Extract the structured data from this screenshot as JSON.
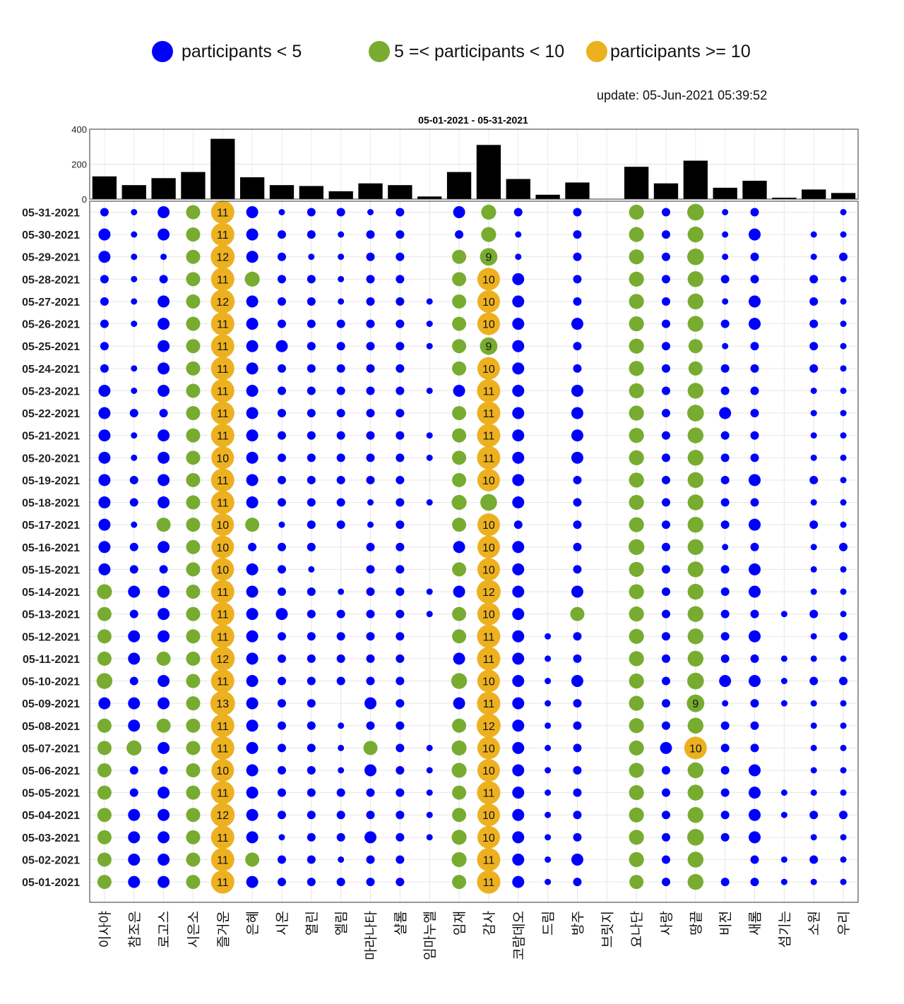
{
  "legend": [
    {
      "label": "participants < 5",
      "color": "#0000ff"
    },
    {
      "label": "5 =< participants < 10",
      "color": "#77ac30"
    },
    {
      "label": "participants >= 10",
      "color": "#edb120"
    }
  ],
  "update_text": "update: 05-Jun-2021 05:39:52",
  "chart_data": {
    "type": "scatter",
    "title": "05-01-2021   - 05-31-2021",
    "categories": [
      "이사야",
      "참조은",
      "로고스",
      "시은소",
      "즐거운",
      "은혜",
      "시온",
      "열린",
      "엘림",
      "마라나타",
      "샬롬",
      "임마누엘",
      "임재",
      "감사",
      "코람데오",
      "드림",
      "방주",
      "브릿지",
      "요나단",
      "사랑",
      "땅끝",
      "비전",
      "새롬",
      "섬기는",
      "소원",
      "우리"
    ],
    "dates": [
      "05-31-2021",
      "05-30-2021",
      "05-29-2021",
      "05-28-2021",
      "05-27-2021",
      "05-26-2021",
      "05-25-2021",
      "05-24-2021",
      "05-23-2021",
      "05-22-2021",
      "05-21-2021",
      "05-20-2021",
      "05-19-2021",
      "05-18-2021",
      "05-17-2021",
      "05-16-2021",
      "05-15-2021",
      "05-14-2021",
      "05-13-2021",
      "05-12-2021",
      "05-11-2021",
      "05-10-2021",
      "05-09-2021",
      "05-08-2021",
      "05-07-2021",
      "05-06-2021",
      "05-05-2021",
      "05-04-2021",
      "05-03-2021",
      "05-02-2021",
      "05-01-2021"
    ],
    "totals": {
      "values": [
        130,
        80,
        120,
        155,
        345,
        125,
        80,
        75,
        45,
        90,
        80,
        15,
        155,
        310,
        115,
        25,
        95,
        0,
        185,
        90,
        220,
        65,
        105,
        8,
        55,
        35
      ],
      "yticks": [
        0,
        200,
        400
      ],
      "ylim": [
        0,
        400
      ]
    },
    "participants": [
      [
        3,
        2,
        4,
        5,
        11,
        4,
        2,
        3,
        3,
        2,
        3,
        0,
        4,
        6,
        3,
        0,
        3,
        0,
        6,
        3,
        8,
        2,
        3,
        0,
        0,
        2
      ],
      [
        4,
        2,
        4,
        5,
        11,
        4,
        3,
        3,
        2,
        3,
        3,
        0,
        3,
        6,
        2,
        0,
        3,
        0,
        6,
        3,
        7,
        2,
        4,
        0,
        2,
        2
      ],
      [
        4,
        2,
        2,
        5,
        12,
        4,
        3,
        2,
        2,
        3,
        3,
        0,
        5,
        9,
        2,
        0,
        3,
        0,
        6,
        3,
        8,
        2,
        3,
        0,
        2,
        3
      ],
      [
        3,
        2,
        3,
        5,
        11,
        6,
        3,
        3,
        2,
        3,
        3,
        0,
        5,
        10,
        4,
        0,
        3,
        0,
        6,
        3,
        7,
        3,
        3,
        0,
        3,
        2
      ],
      [
        3,
        2,
        4,
        5,
        12,
        4,
        3,
        3,
        2,
        3,
        3,
        2,
        5,
        10,
        4,
        0,
        3,
        0,
        6,
        3,
        7,
        2,
        4,
        0,
        3,
        2
      ],
      [
        3,
        2,
        4,
        5,
        11,
        4,
        3,
        3,
        3,
        3,
        3,
        2,
        5,
        10,
        4,
        0,
        4,
        0,
        6,
        3,
        7,
        3,
        4,
        0,
        3,
        2
      ],
      [
        3,
        0,
        4,
        5,
        11,
        4,
        4,
        3,
        3,
        3,
        3,
        2,
        5,
        9,
        4,
        0,
        3,
        0,
        6,
        3,
        5,
        2,
        3,
        0,
        3,
        2
      ],
      [
        3,
        2,
        4,
        5,
        11,
        4,
        3,
        3,
        3,
        3,
        3,
        0,
        5,
        10,
        4,
        0,
        3,
        0,
        6,
        3,
        5,
        3,
        3,
        0,
        3,
        2
      ],
      [
        4,
        2,
        4,
        5,
        11,
        4,
        3,
        3,
        3,
        3,
        3,
        2,
        4,
        11,
        4,
        0,
        4,
        0,
        6,
        3,
        7,
        3,
        3,
        0,
        2,
        2
      ],
      [
        4,
        3,
        3,
        5,
        11,
        4,
        3,
        3,
        3,
        3,
        3,
        0,
        5,
        11,
        4,
        0,
        4,
        0,
        6,
        3,
        8,
        4,
        3,
        0,
        2,
        2
      ],
      [
        4,
        2,
        4,
        5,
        11,
        4,
        3,
        3,
        3,
        3,
        3,
        2,
        5,
        11,
        4,
        0,
        4,
        0,
        6,
        3,
        7,
        3,
        3,
        0,
        2,
        2
      ],
      [
        4,
        2,
        4,
        5,
        10,
        4,
        3,
        3,
        3,
        3,
        3,
        2,
        5,
        11,
        4,
        0,
        4,
        0,
        6,
        3,
        7,
        3,
        3,
        0,
        2,
        2
      ],
      [
        4,
        3,
        4,
        5,
        11,
        4,
        3,
        3,
        3,
        3,
        3,
        0,
        5,
        10,
        4,
        0,
        3,
        0,
        6,
        3,
        7,
        3,
        4,
        0,
        3,
        2
      ],
      [
        4,
        3,
        4,
        5,
        11,
        4,
        3,
        3,
        3,
        2,
        3,
        2,
        6,
        8,
        4,
        0,
        3,
        0,
        6,
        3,
        7,
        3,
        3,
        0,
        2,
        2
      ],
      [
        4,
        2,
        5,
        5,
        10,
        5,
        2,
        3,
        3,
        2,
        3,
        0,
        5,
        10,
        3,
        0,
        3,
        0,
        6,
        3,
        7,
        3,
        4,
        0,
        3,
        2
      ],
      [
        4,
        3,
        4,
        5,
        10,
        3,
        3,
        3,
        0,
        3,
        3,
        0,
        4,
        10,
        4,
        0,
        3,
        0,
        7,
        3,
        7,
        2,
        3,
        0,
        2,
        3
      ],
      [
        4,
        3,
        3,
        5,
        10,
        4,
        3,
        2,
        0,
        3,
        3,
        0,
        5,
        10,
        4,
        0,
        3,
        0,
        6,
        3,
        7,
        3,
        4,
        0,
        2,
        2
      ],
      [
        6,
        4,
        4,
        5,
        11,
        4,
        3,
        3,
        2,
        3,
        3,
        2,
        4,
        12,
        4,
        0,
        4,
        0,
        6,
        3,
        7,
        3,
        4,
        0,
        2,
        2
      ],
      [
        5,
        3,
        4,
        5,
        11,
        4,
        4,
        3,
        3,
        3,
        3,
        2,
        5,
        10,
        4,
        0,
        5,
        0,
        6,
        3,
        7,
        3,
        3,
        2,
        3,
        2
      ],
      [
        5,
        4,
        4,
        5,
        11,
        4,
        3,
        3,
        3,
        3,
        3,
        0,
        5,
        11,
        4,
        2,
        3,
        0,
        6,
        3,
        7,
        3,
        4,
        0,
        2,
        3
      ],
      [
        5,
        4,
        5,
        5,
        12,
        4,
        3,
        3,
        3,
        3,
        3,
        0,
        4,
        11,
        4,
        2,
        3,
        0,
        6,
        3,
        7,
        3,
        3,
        2,
        2,
        2
      ],
      [
        7,
        3,
        4,
        5,
        11,
        4,
        3,
        3,
        3,
        3,
        3,
        0,
        7,
        10,
        4,
        2,
        4,
        0,
        6,
        3,
        8,
        4,
        4,
        2,
        3,
        3
      ],
      [
        4,
        4,
        4,
        5,
        13,
        4,
        3,
        3,
        0,
        4,
        3,
        0,
        4,
        11,
        4,
        2,
        3,
        0,
        6,
        3,
        9,
        2,
        3,
        2,
        2,
        2
      ],
      [
        5,
        4,
        5,
        5,
        11,
        4,
        3,
        3,
        2,
        3,
        3,
        0,
        5,
        12,
        4,
        2,
        3,
        0,
        6,
        3,
        7,
        3,
        3,
        0,
        2,
        2
      ],
      [
        5,
        6,
        4,
        5,
        11,
        4,
        3,
        3,
        2,
        5,
        3,
        2,
        6,
        10,
        4,
        2,
        3,
        0,
        6,
        4,
        10,
        3,
        3,
        0,
        2,
        2
      ],
      [
        5,
        3,
        3,
        5,
        10,
        4,
        3,
        3,
        2,
        4,
        3,
        2,
        6,
        10,
        4,
        2,
        3,
        0,
        6,
        3,
        7,
        3,
        4,
        0,
        2,
        2
      ],
      [
        5,
        3,
        4,
        5,
        11,
        4,
        3,
        3,
        3,
        3,
        3,
        2,
        5,
        11,
        4,
        2,
        3,
        0,
        6,
        3,
        7,
        3,
        4,
        2,
        2,
        2
      ],
      [
        5,
        4,
        4,
        5,
        12,
        4,
        3,
        3,
        3,
        3,
        3,
        2,
        5,
        10,
        4,
        2,
        3,
        0,
        6,
        3,
        7,
        3,
        4,
        2,
        3,
        3
      ],
      [
        5,
        4,
        4,
        5,
        11,
        4,
        2,
        3,
        3,
        4,
        3,
        2,
        6,
        10,
        4,
        2,
        3,
        0,
        6,
        3,
        8,
        3,
        4,
        0,
        2,
        2
      ],
      [
        5,
        4,
        4,
        5,
        11,
        5,
        3,
        3,
        2,
        3,
        3,
        0,
        6,
        11,
        4,
        2,
        4,
        0,
        6,
        3,
        7,
        0,
        3,
        2,
        3,
        2
      ],
      [
        5,
        4,
        4,
        5,
        11,
        4,
        3,
        3,
        3,
        3,
        3,
        0,
        5,
        11,
        4,
        2,
        3,
        0,
        5,
        3,
        7,
        3,
        3,
        2,
        2,
        2
      ]
    ]
  }
}
